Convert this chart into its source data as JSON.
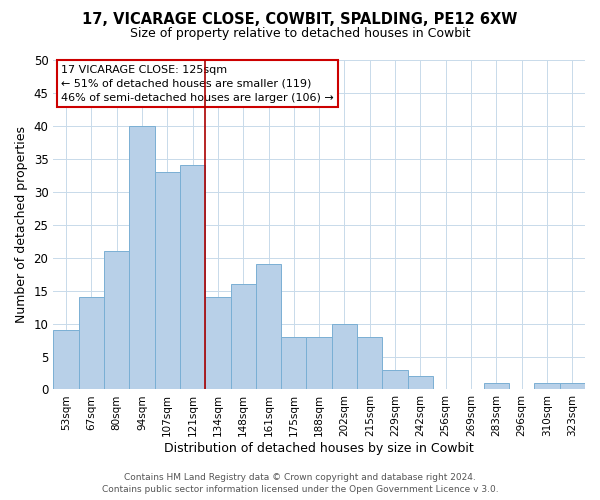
{
  "title": "17, VICARAGE CLOSE, COWBIT, SPALDING, PE12 6XW",
  "subtitle": "Size of property relative to detached houses in Cowbit",
  "xlabel": "Distribution of detached houses by size in Cowbit",
  "ylabel": "Number of detached properties",
  "bar_labels": [
    "53sqm",
    "67sqm",
    "80sqm",
    "94sqm",
    "107sqm",
    "121sqm",
    "134sqm",
    "148sqm",
    "161sqm",
    "175sqm",
    "188sqm",
    "202sqm",
    "215sqm",
    "229sqm",
    "242sqm",
    "256sqm",
    "269sqm",
    "283sqm",
    "296sqm",
    "310sqm",
    "323sqm"
  ],
  "bar_values": [
    9,
    14,
    21,
    40,
    33,
    34,
    14,
    16,
    19,
    8,
    8,
    10,
    8,
    3,
    2,
    0,
    0,
    1,
    0,
    1,
    1
  ],
  "bar_color": "#b8d0e8",
  "bar_edge_color": "#7aafd4",
  "ylim": [
    0,
    50
  ],
  "yticks": [
    0,
    5,
    10,
    15,
    20,
    25,
    30,
    35,
    40,
    45,
    50
  ],
  "vline_x": 5.5,
  "vline_color": "#aa0000",
  "annotation_title": "17 VICARAGE CLOSE: 125sqm",
  "annotation_line1": "← 51% of detached houses are smaller (119)",
  "annotation_line2": "46% of semi-detached houses are larger (106) →",
  "annotation_box_color": "#ffffff",
  "annotation_box_edge": "#cc0000",
  "footer_line1": "Contains HM Land Registry data © Crown copyright and database right 2024.",
  "footer_line2": "Contains public sector information licensed under the Open Government Licence v 3.0.",
  "background_color": "#ffffff",
  "grid_color": "#c8daea"
}
